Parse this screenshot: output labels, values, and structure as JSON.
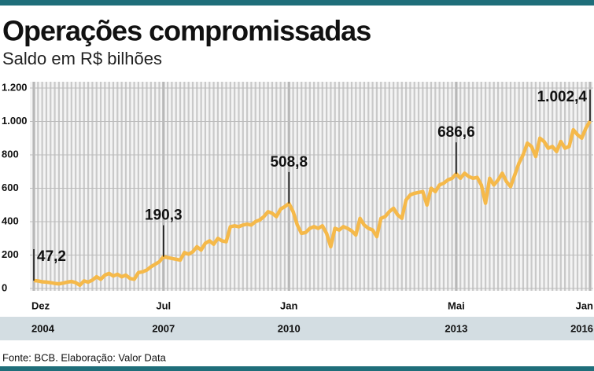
{
  "chart_data": {
    "type": "line",
    "title": "Operações compromissadas",
    "subtitle": "Saldo em R$ bilhões",
    "source": "Fonte: BCB. Elaboração: Valor Data",
    "categories": [
      "Dez",
      null,
      null,
      null,
      null,
      null,
      null,
      null,
      null,
      null,
      null,
      null,
      null,
      null,
      null,
      null,
      null,
      null,
      null,
      null,
      null,
      null,
      null,
      null,
      null,
      null,
      null,
      null,
      null,
      null,
      null,
      "Jul",
      null,
      null,
      null,
      null,
      null,
      null,
      null,
      null,
      null,
      null,
      null,
      null,
      null,
      null,
      null,
      null,
      null,
      null,
      null,
      null,
      null,
      null,
      null,
      null,
      null,
      null,
      null,
      null,
      null,
      "Jan",
      null,
      null,
      null,
      null,
      null,
      null,
      null,
      null,
      null,
      null,
      null,
      null,
      null,
      null,
      null,
      null,
      null,
      null,
      null,
      null,
      null,
      null,
      null,
      null,
      null,
      null,
      null,
      null,
      null,
      null,
      null,
      null,
      null,
      null,
      null,
      null,
      null,
      null,
      null,
      "Mai",
      null,
      null,
      null,
      null,
      null,
      null,
      null,
      null,
      null,
      null,
      null,
      null,
      null,
      null,
      null,
      null,
      null,
      null,
      null,
      null,
      null,
      null,
      null,
      null,
      null,
      null,
      null,
      null,
      null,
      null,
      null,
      "Jan"
    ],
    "years": [
      "2004",
      null,
      null,
      null,
      null,
      null,
      null,
      null,
      null,
      null,
      null,
      null,
      null,
      null,
      null,
      null,
      null,
      null,
      null,
      null,
      null,
      null,
      null,
      null,
      null,
      null,
      null,
      null,
      null,
      null,
      null,
      "2007",
      null,
      null,
      null,
      null,
      null,
      null,
      null,
      null,
      null,
      null,
      null,
      null,
      null,
      null,
      null,
      null,
      null,
      null,
      null,
      null,
      null,
      null,
      null,
      null,
      null,
      null,
      null,
      null,
      null,
      "2010",
      null,
      null,
      null,
      null,
      null,
      null,
      null,
      null,
      null,
      null,
      null,
      null,
      null,
      null,
      null,
      null,
      null,
      null,
      null,
      null,
      null,
      null,
      null,
      null,
      null,
      null,
      null,
      null,
      null,
      null,
      null,
      null,
      null,
      null,
      null,
      null,
      null,
      null,
      null,
      "2013",
      null,
      null,
      null,
      null,
      null,
      null,
      null,
      null,
      null,
      null,
      null,
      null,
      null,
      null,
      null,
      null,
      null,
      null,
      null,
      null,
      null,
      null,
      null,
      null,
      null,
      null,
      null,
      null,
      null,
      null,
      null,
      "2016"
    ],
    "values": [
      47.2,
      45,
      40,
      38,
      35,
      30,
      28,
      32,
      38,
      42,
      35,
      20,
      45,
      38,
      50,
      70,
      55,
      80,
      90,
      75,
      85,
      70,
      80,
      60,
      55,
      95,
      100,
      110,
      130,
      145,
      160,
      190.3,
      185,
      180,
      175,
      170,
      215,
      205,
      220,
      250,
      230,
      270,
      285,
      265,
      300,
      285,
      280,
      370,
      375,
      370,
      380,
      385,
      380,
      400,
      410,
      430,
      460,
      450,
      430,
      475,
      490,
      508.8,
      460,
      380,
      330,
      335,
      360,
      370,
      360,
      375,
      330,
      250,
      360,
      350,
      370,
      360,
      345,
      320,
      420,
      380,
      360,
      350,
      310,
      420,
      430,
      460,
      480,
      440,
      420,
      530,
      560,
      570,
      575,
      580,
      500,
      600,
      580,
      620,
      630,
      650,
      660,
      686.6,
      660,
      690,
      670,
      660,
      665,
      620,
      510,
      660,
      620,
      650,
      690,
      640,
      610,
      680,
      750,
      800,
      870,
      850,
      790,
      900,
      880,
      840,
      850,
      820,
      880,
      840,
      850,
      950,
      920,
      900,
      960,
      1002.4
    ],
    "value_labels": [
      "47,2",
      null,
      null,
      null,
      null,
      null,
      null,
      null,
      null,
      null,
      null,
      null,
      null,
      null,
      null,
      null,
      null,
      null,
      null,
      null,
      null,
      null,
      null,
      null,
      null,
      null,
      null,
      null,
      null,
      null,
      null,
      "190,3",
      null,
      null,
      null,
      null,
      null,
      null,
      null,
      null,
      null,
      null,
      null,
      null,
      null,
      null,
      null,
      null,
      null,
      null,
      null,
      null,
      null,
      null,
      null,
      null,
      null,
      null,
      null,
      null,
      null,
      "508,8",
      null,
      null,
      null,
      null,
      null,
      null,
      null,
      null,
      null,
      null,
      null,
      null,
      null,
      null,
      null,
      null,
      null,
      null,
      null,
      null,
      null,
      null,
      null,
      null,
      null,
      null,
      null,
      null,
      null,
      null,
      null,
      null,
      null,
      null,
      null,
      null,
      null,
      null,
      null,
      "686,6",
      null,
      null,
      null,
      null,
      null,
      null,
      null,
      null,
      null,
      null,
      null,
      null,
      null,
      null,
      null,
      null,
      null,
      null,
      null,
      null,
      null,
      null,
      null,
      null,
      null,
      null,
      null,
      null,
      null,
      null,
      null,
      "1.002,4"
    ],
    "color": "#f5b94a",
    "ylim": [
      0,
      1200
    ],
    "yticks": [
      0,
      200,
      400,
      600,
      800,
      {
        "value": 1000,
        "label": "1.000"
      },
      {
        "value": 1200,
        "label": "1.200"
      }
    ],
    "grid": true
  }
}
